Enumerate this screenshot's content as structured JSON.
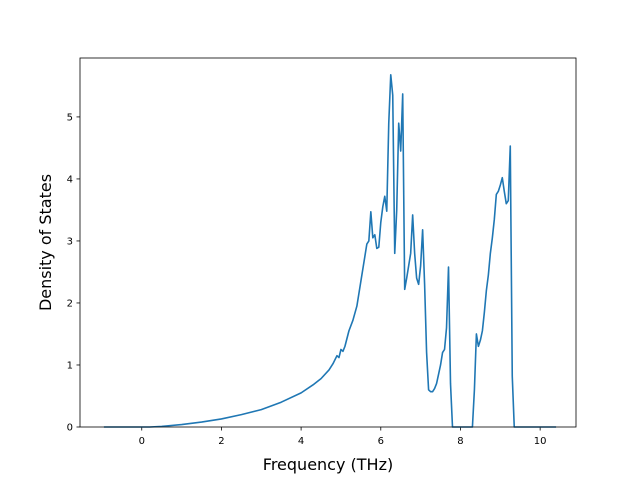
{
  "chart_data": {
    "type": "line",
    "title": "",
    "xlabel": "Frequency (THz)",
    "ylabel": "Density of States",
    "xlim": [
      -1.55,
      10.9
    ],
    "ylim": [
      0,
      5.95
    ],
    "xticks": [
      0,
      2,
      4,
      6,
      8,
      10
    ],
    "xtick_labels": [
      "0",
      "2",
      "4",
      "6",
      "8",
      "10"
    ],
    "yticks": [
      0,
      1,
      2,
      3,
      4,
      5
    ],
    "ytick_labels": [
      "0",
      "1",
      "2",
      "3",
      "4",
      "5"
    ],
    "grid": false,
    "legend": "none",
    "series": [
      {
        "color": "#1f77b4",
        "x": [
          -0.95,
          0.0,
          0.2,
          0.5,
          1.0,
          1.5,
          2.0,
          2.5,
          3.0,
          3.5,
          4.0,
          4.3,
          4.5,
          4.7,
          4.8,
          4.9,
          4.95,
          5.0,
          5.05,
          5.1,
          5.2,
          5.3,
          5.4,
          5.5,
          5.6,
          5.65,
          5.7,
          5.75,
          5.8,
          5.85,
          5.9,
          5.95,
          6.0,
          6.05,
          6.1,
          6.15,
          6.2,
          6.25,
          6.3,
          6.35,
          6.4,
          6.45,
          6.5,
          6.55,
          6.6,
          6.65,
          6.7,
          6.75,
          6.8,
          6.85,
          6.9,
          6.95,
          7.0,
          7.05,
          7.1,
          7.15,
          7.2,
          7.25,
          7.3,
          7.35,
          7.4,
          7.45,
          7.5,
          7.55,
          7.6,
          7.65,
          7.7,
          7.75,
          7.8,
          7.82,
          7.85,
          7.9,
          7.95,
          8.3,
          8.35,
          8.4,
          8.45,
          8.5,
          8.55,
          8.6,
          8.65,
          8.7,
          8.75,
          8.8,
          8.85,
          8.9,
          8.95,
          9.0,
          9.05,
          9.1,
          9.15,
          9.2,
          9.25,
          9.3,
          9.35,
          9.4,
          9.45,
          9.5,
          9.6,
          9.8,
          10.4
        ],
        "y": [
          0.0,
          0.0,
          0.0,
          0.01,
          0.04,
          0.08,
          0.13,
          0.2,
          0.28,
          0.4,
          0.55,
          0.68,
          0.78,
          0.92,
          1.02,
          1.15,
          1.12,
          1.25,
          1.22,
          1.3,
          1.55,
          1.72,
          1.95,
          2.35,
          2.75,
          2.95,
          3.0,
          3.47,
          3.05,
          3.1,
          2.88,
          2.9,
          3.3,
          3.55,
          3.72,
          3.48,
          4.9,
          5.68,
          5.35,
          2.8,
          3.5,
          4.9,
          4.45,
          5.37,
          2.22,
          2.4,
          2.6,
          2.8,
          3.42,
          2.8,
          2.4,
          2.3,
          2.6,
          3.18,
          2.3,
          1.2,
          0.6,
          0.57,
          0.57,
          0.62,
          0.7,
          0.85,
          1.0,
          1.2,
          1.25,
          1.6,
          2.58,
          0.7,
          0.0,
          0.0,
          0.0,
          0.0,
          0.0,
          0.0,
          0.6,
          1.5,
          1.3,
          1.4,
          1.55,
          1.85,
          2.2,
          2.45,
          2.8,
          3.05,
          3.35,
          3.75,
          3.8,
          3.9,
          4.02,
          3.8,
          3.6,
          3.65,
          4.53,
          0.82,
          0.0,
          0.0,
          0.0,
          0.0,
          0.0,
          0.0,
          0.0
        ]
      }
    ]
  }
}
